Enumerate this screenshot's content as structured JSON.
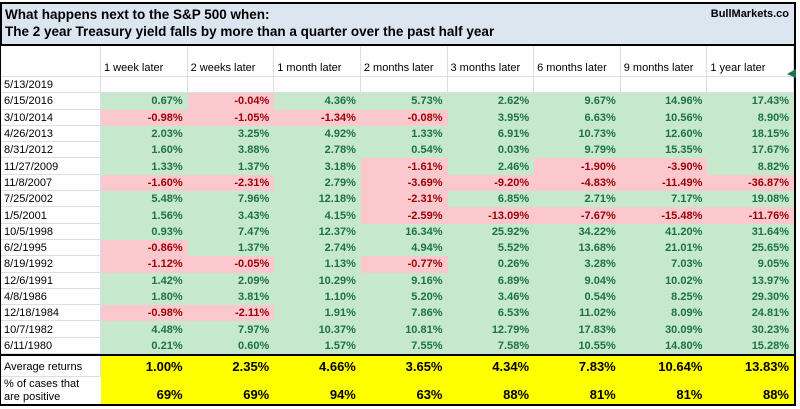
{
  "title": {
    "line1": "What happens next to the S&P 500 when:",
    "brand": "BullMarkets.co",
    "line2": "The 2 year Treasury yield falls by more than a quarter over the past half year"
  },
  "columns": [
    "1 week later",
    "2 weeks later",
    "1 month later",
    "2 months later",
    "3 months later",
    "6 months later",
    "9 months later",
    "1 year later"
  ],
  "rows": [
    {
      "date": "5/13/2019",
      "values": [
        "",
        "",
        "",
        "",
        "",
        "",
        "",
        ""
      ]
    },
    {
      "date": "6/15/2016",
      "values": [
        "0.67%",
        "-0.04%",
        "4.36%",
        "5.73%",
        "2.62%",
        "9.67%",
        "14.96%",
        "17.43%"
      ]
    },
    {
      "date": "3/10/2014",
      "values": [
        "-0.98%",
        "-1.05%",
        "-1.34%",
        "-0.08%",
        "3.95%",
        "6.63%",
        "10.56%",
        "8.90%"
      ]
    },
    {
      "date": "4/26/2013",
      "values": [
        "2.03%",
        "3.25%",
        "4.92%",
        "1.33%",
        "6.91%",
        "10.73%",
        "12.60%",
        "18.15%"
      ]
    },
    {
      "date": "8/31/2012",
      "values": [
        "1.60%",
        "3.88%",
        "2.78%",
        "0.54%",
        "0.03%",
        "9.79%",
        "15.35%",
        "17.67%"
      ]
    },
    {
      "date": "11/27/2009",
      "values": [
        "1.33%",
        "1.37%",
        "3.18%",
        "-1.61%",
        "2.46%",
        "-1.90%",
        "-3.90%",
        "8.82%"
      ]
    },
    {
      "date": "11/8/2007",
      "values": [
        "-1.60%",
        "-2.31%",
        "2.79%",
        "-3.69%",
        "-9.20%",
        "-4.83%",
        "-11.49%",
        "-36.87%"
      ]
    },
    {
      "date": "7/25/2002",
      "values": [
        "5.48%",
        "7.96%",
        "12.18%",
        "-2.31%",
        "6.85%",
        "2.71%",
        "7.17%",
        "19.08%"
      ]
    },
    {
      "date": "1/5/2001",
      "values": [
        "1.56%",
        "3.43%",
        "4.15%",
        "-2.59%",
        "-13.09%",
        "-7.67%",
        "-15.48%",
        "-11.76%"
      ]
    },
    {
      "date": "10/5/1998",
      "values": [
        "0.93%",
        "7.47%",
        "12.37%",
        "16.34%",
        "25.92%",
        "34.22%",
        "41.20%",
        "31.64%"
      ]
    },
    {
      "date": "6/2/1995",
      "values": [
        "-0.86%",
        "1.37%",
        "2.74%",
        "4.94%",
        "5.52%",
        "13.68%",
        "21.01%",
        "25.65%"
      ]
    },
    {
      "date": "8/19/1992",
      "values": [
        "-1.12%",
        "-0.05%",
        "1.13%",
        "-0.77%",
        "0.26%",
        "3.28%",
        "7.03%",
        "9.05%"
      ]
    },
    {
      "date": "12/6/1991",
      "values": [
        "1.42%",
        "2.09%",
        "10.29%",
        "9.16%",
        "6.89%",
        "9.04%",
        "10.02%",
        "13.97%"
      ]
    },
    {
      "date": "4/8/1986",
      "values": [
        "1.80%",
        "3.81%",
        "1.10%",
        "5.20%",
        "3.46%",
        "0.54%",
        "8.25%",
        "29.30%"
      ]
    },
    {
      "date": "12/18/1984",
      "values": [
        "-0.98%",
        "-2.11%",
        "1.91%",
        "7.86%",
        "6.53%",
        "11.02%",
        "8.09%",
        "24.81%"
      ]
    },
    {
      "date": "10/7/1982",
      "values": [
        "4.48%",
        "7.97%",
        "10.37%",
        "10.81%",
        "12.79%",
        "17.83%",
        "30.09%",
        "30.23%"
      ]
    },
    {
      "date": "6/11/1980",
      "values": [
        "0.21%",
        "0.60%",
        "1.57%",
        "7.55%",
        "7.58%",
        "10.55%",
        "14.80%",
        "15.28%"
      ]
    }
  ],
  "summary": {
    "avg_label": "Average returns",
    "avg_values": [
      "1.00%",
      "2.35%",
      "4.66%",
      "3.65%",
      "4.34%",
      "7.83%",
      "10.64%",
      "13.83%"
    ],
    "pct_label_line1": "% of cases that",
    "pct_label_line2": "are positive",
    "pct_values": [
      "69%",
      "69%",
      "94%",
      "63%",
      "88%",
      "81%",
      "81%",
      "88%"
    ]
  },
  "colors": {
    "title_bg": "#dce6f1",
    "positive_bg": "#c6e9ce",
    "positive_text": "#1e7145",
    "negative_bg": "#fbc9cd",
    "negative_text": "#9c0006",
    "summary_bg": "#ffff00",
    "grid_line": "#d9dfe8",
    "marker_color": "#217346"
  }
}
